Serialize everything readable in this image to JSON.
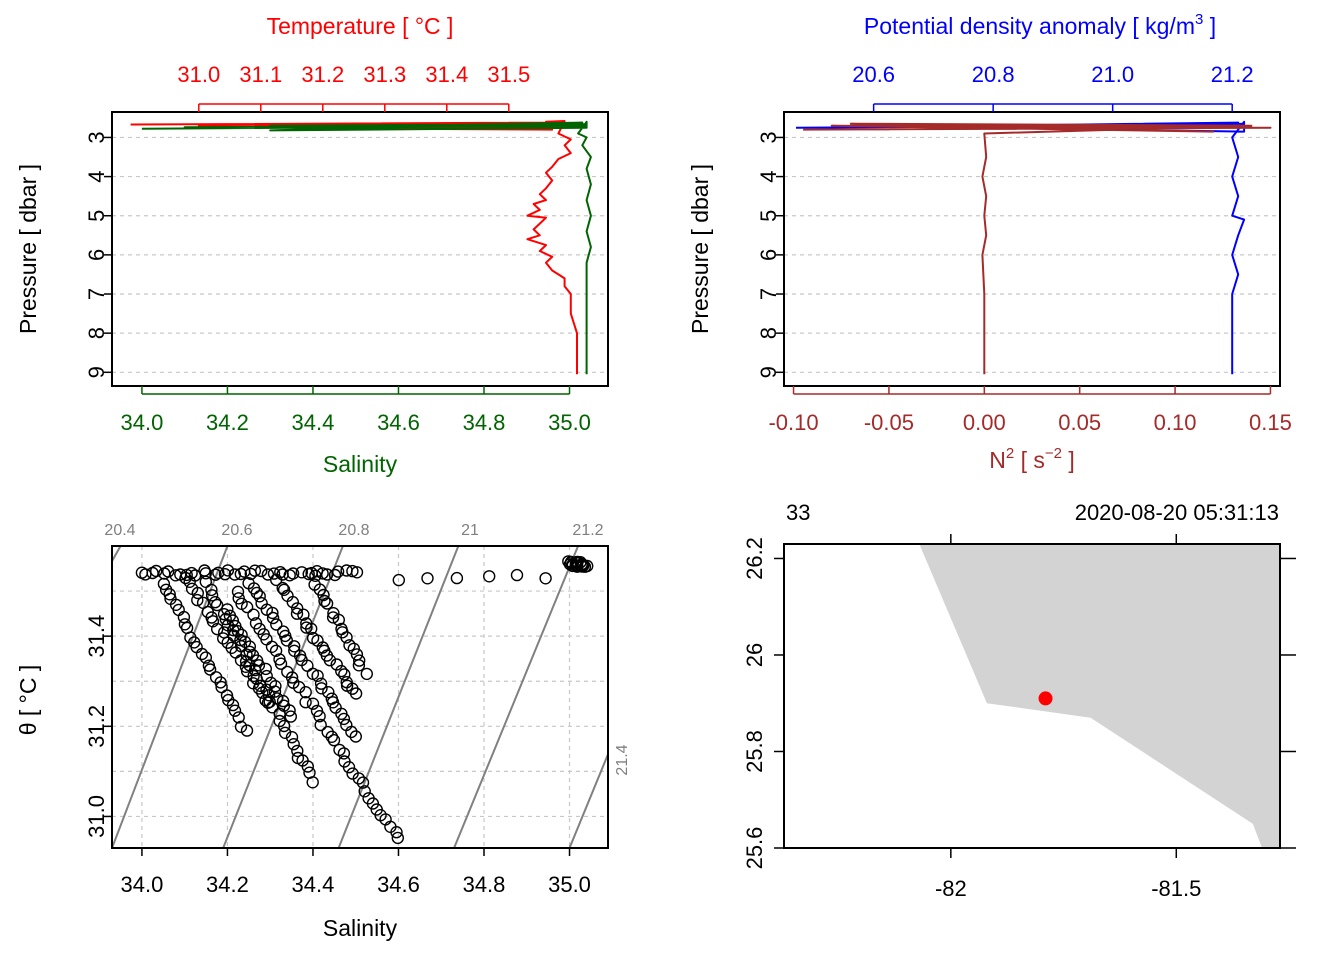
{
  "chart_data": [
    {
      "id": "profile-ts",
      "type": "line",
      "ylabel": "Pressure [ dbar ]",
      "ylim": [
        9.35,
        2.35
      ],
      "yticks": [
        "3",
        "4",
        "5",
        "6",
        "7",
        "8",
        "9"
      ],
      "top_axis": {
        "label": "Temperature [ °C ]",
        "range": [
          30.86,
          31.66
        ],
        "ticks": [
          "31.0",
          "31.1",
          "31.2",
          "31.3",
          "31.4",
          "31.5"
        ],
        "color": "#ff0000"
      },
      "bottom_axis": {
        "label": "Salinity",
        "range": [
          33.93,
          35.09
        ],
        "ticks": [
          "34.0",
          "34.2",
          "34.4",
          "34.6",
          "34.8",
          "35.0"
        ],
        "color": "#006400"
      },
      "grid": true,
      "series": [
        {
          "axis": "top",
          "color": "#ff0000",
          "points": [
            [
              30.89,
              2.67
            ],
            [
              31.57,
              2.62
            ],
            [
              31.0,
              2.7
            ],
            [
              31.58,
              2.65
            ],
            [
              31.1,
              2.74
            ],
            [
              31.57,
              2.7
            ],
            [
              31.2,
              2.72
            ],
            [
              31.58,
              2.75
            ],
            [
              31.3,
              2.78
            ],
            [
              31.57,
              2.8
            ],
            [
              31.56,
              2.6
            ],
            [
              31.59,
              2.58
            ],
            [
              31.58,
              2.9
            ],
            [
              31.6,
              3.05
            ],
            [
              31.59,
              3.2
            ],
            [
              31.6,
              3.4
            ],
            [
              31.58,
              3.55
            ],
            [
              31.57,
              3.75
            ],
            [
              31.56,
              3.9
            ],
            [
              31.57,
              4.1
            ],
            [
              31.56,
              4.3
            ],
            [
              31.55,
              4.45
            ],
            [
              31.56,
              4.6
            ],
            [
              31.54,
              4.7
            ],
            [
              31.55,
              4.85
            ],
            [
              31.53,
              5.0
            ],
            [
              31.56,
              5.05
            ],
            [
              31.55,
              5.2
            ],
            [
              31.54,
              5.35
            ],
            [
              31.55,
              5.5
            ],
            [
              31.53,
              5.6
            ],
            [
              31.56,
              5.75
            ],
            [
              31.55,
              5.9
            ],
            [
              31.57,
              6.05
            ],
            [
              31.56,
              6.2
            ],
            [
              31.57,
              6.4
            ],
            [
              31.58,
              6.5
            ],
            [
              31.59,
              6.6
            ],
            [
              31.59,
              6.8
            ],
            [
              31.6,
              7.0
            ],
            [
              31.6,
              7.5
            ],
            [
              31.61,
              8.0
            ],
            [
              31.61,
              8.5
            ],
            [
              31.61,
              9.05
            ]
          ]
        },
        {
          "axis": "bottom",
          "color": "#006400",
          "points": [
            [
              34.0,
              2.78
            ],
            [
              35.04,
              2.7
            ],
            [
              34.1,
              2.74
            ],
            [
              35.03,
              2.68
            ],
            [
              34.3,
              2.7
            ],
            [
              35.04,
              2.66
            ],
            [
              34.5,
              2.72
            ],
            [
              35.03,
              2.62
            ],
            [
              34.3,
              2.82
            ],
            [
              35.04,
              2.75
            ],
            [
              35.04,
              2.6
            ],
            [
              35.02,
              2.9
            ],
            [
              35.04,
              3.0
            ],
            [
              35.03,
              3.2
            ],
            [
              35.05,
              3.5
            ],
            [
              35.04,
              3.8
            ],
            [
              35.05,
              4.2
            ],
            [
              35.04,
              4.6
            ],
            [
              35.05,
              5.0
            ],
            [
              35.04,
              5.4
            ],
            [
              35.05,
              5.8
            ],
            [
              35.04,
              6.2
            ],
            [
              35.04,
              6.6
            ],
            [
              35.04,
              7.0
            ],
            [
              35.04,
              7.5
            ],
            [
              35.04,
              8.0
            ],
            [
              35.04,
              8.5
            ],
            [
              35.04,
              9.05
            ]
          ]
        }
      ]
    },
    {
      "id": "profile-density",
      "type": "line",
      "ylabel": "Pressure [ dbar ]",
      "ylim": [
        9.35,
        2.35
      ],
      "yticks": [
        "3",
        "4",
        "5",
        "6",
        "7",
        "8",
        "9"
      ],
      "top_axis": {
        "label_main": "Potential density anomaly [ kg/m",
        "label_sup": "3",
        "label_end": " ]",
        "range": [
          20.45,
          21.28
        ],
        "ticks": [
          "20.6",
          "20.8",
          "21.0",
          "21.2"
        ],
        "color": "#0000ff"
      },
      "bottom_axis": {
        "label_main": "N",
        "label_sup": "2",
        "label_mid": " [ s",
        "label_sup2": "−2",
        "label_end": " ]",
        "range": [
          -0.105,
          0.155
        ],
        "ticks": [
          "-0.10",
          "-0.05",
          "0.00",
          "0.05",
          "0.10",
          "0.15"
        ],
        "color": "#a52a2a"
      },
      "grid": true,
      "series": [
        {
          "axis": "top",
          "color": "#0000ff",
          "points": [
            [
              20.47,
              2.75
            ],
            [
              21.2,
              2.68
            ],
            [
              20.6,
              2.72
            ],
            [
              21.22,
              2.65
            ],
            [
              20.8,
              2.7
            ],
            [
              21.21,
              2.62
            ],
            [
              21.0,
              2.8
            ],
            [
              21.22,
              2.85
            ],
            [
              21.22,
              2.6
            ],
            [
              21.2,
              3.0
            ],
            [
              21.21,
              3.5
            ],
            [
              21.2,
              4.0
            ],
            [
              21.21,
              4.5
            ],
            [
              21.2,
              5.0
            ],
            [
              21.22,
              5.1
            ],
            [
              21.21,
              5.5
            ],
            [
              21.2,
              6.0
            ],
            [
              21.21,
              6.5
            ],
            [
              21.2,
              7.0
            ],
            [
              21.2,
              8.0
            ],
            [
              21.2,
              9.05
            ]
          ]
        },
        {
          "axis": "bottom",
          "color": "#a52a2a",
          "points": [
            [
              -0.095,
              2.8
            ],
            [
              0.15,
              2.75
            ],
            [
              -0.08,
              2.7
            ],
            [
              0.12,
              2.85
            ],
            [
              -0.07,
              2.65
            ],
            [
              0.14,
              2.7
            ],
            [
              0.0,
              2.9
            ],
            [
              0.001,
              3.5
            ],
            [
              -0.001,
              4.0
            ],
            [
              0.001,
              4.5
            ],
            [
              0.0,
              5.0
            ],
            [
              0.001,
              5.5
            ],
            [
              -0.001,
              6.0
            ],
            [
              0.0,
              7.0
            ],
            [
              0.0,
              8.0
            ],
            [
              0.0,
              9.05
            ]
          ]
        }
      ]
    },
    {
      "id": "ts-diagram",
      "type": "scatter",
      "xlabel": "Salinity",
      "ylabel": "θ [ °C ]",
      "xlim": [
        33.93,
        35.09
      ],
      "ylim": [
        30.93,
        31.6
      ],
      "xticks": [
        "34.0",
        "34.2",
        "34.4",
        "34.6",
        "34.8",
        "35.0"
      ],
      "yticks": [
        "31.0",
        "31.2",
        "31.4"
      ],
      "grid": true,
      "isopycnal_labels": [
        "20.4",
        "20.6",
        "20.8",
        "21",
        "21.2",
        "21.4"
      ],
      "isopycnals": [
        {
          "name": "20.4",
          "s_at_top": 33.95,
          "s_at_bottom": 33.55
        },
        {
          "name": "20.6",
          "s_at_top": 34.2,
          "s_at_bottom": 33.93
        },
        {
          "name": "20.8",
          "s_at_top": 34.47,
          "s_at_bottom": 34.19
        },
        {
          "name": "21",
          "s_at_top": 34.74,
          "s_at_bottom": 34.46
        },
        {
          "name": "21.2",
          "s_at_top": 35.02,
          "s_at_bottom": 34.73
        },
        {
          "name": "",
          "s_at_top": 35.29,
          "s_at_bottom": 35.0
        },
        {
          "name": "21.4",
          "s_at_top": 35.56,
          "s_at_bottom": 35.26
        }
      ],
      "point_groups": [
        {
          "s_start": 34.0,
          "s_end": 34.5,
          "t": 31.54,
          "count": 40
        },
        {
          "s_start": 34.6,
          "s_end": 34.95,
          "t": 31.53,
          "count": 6
        },
        {
          "s_start": 35.0,
          "s_end": 35.04,
          "t": 31.56,
          "count": 20
        },
        {
          "s_start": 34.05,
          "s_end": 34.24,
          "t_start": 31.52,
          "t_end": 31.19,
          "count": 26
        },
        {
          "s_start": 34.1,
          "s_end": 34.3,
          "t_start": 31.53,
          "t_end": 31.25,
          "count": 24
        },
        {
          "s_start": 34.15,
          "s_end": 34.4,
          "t_start": 31.52,
          "t_end": 31.08,
          "count": 34
        },
        {
          "s_start": 34.22,
          "s_end": 34.6,
          "t_start": 31.5,
          "t_end": 30.95,
          "count": 42
        },
        {
          "s_start": 34.25,
          "s_end": 34.5,
          "t_start": 31.52,
          "t_end": 31.18,
          "count": 30
        },
        {
          "s_start": 34.32,
          "s_end": 34.5,
          "t_start": 31.52,
          "t_end": 31.27,
          "count": 24
        },
        {
          "s_start": 34.4,
          "s_end": 34.52,
          "t_start": 31.53,
          "t_end": 31.32,
          "count": 18
        },
        {
          "s_start": 34.2,
          "s_end": 34.35,
          "t_start": 31.46,
          "t_end": 31.22,
          "count": 22
        }
      ]
    },
    {
      "id": "station-map",
      "type": "scatter",
      "top_left_label": "33",
      "top_right_label": "2020-08-20 05:31:13",
      "xlim": [
        -82.37,
        -81.27
      ],
      "ylim": [
        25.6,
        26.23
      ],
      "xticks": [
        {
          "value": -82,
          "label": "-82"
        },
        {
          "value": -81.5,
          "label": "-81.5"
        }
      ],
      "yticks": [
        {
          "value": 25.6,
          "label": "25.6"
        },
        {
          "value": 25.8,
          "label": "25.8"
        },
        {
          "value": 26.0,
          "label": "26"
        },
        {
          "value": 26.2,
          "label": "26.2"
        }
      ],
      "land_color": "#d3d3d3",
      "land_polygon": [
        [
          -82.07,
          26.23
        ],
        [
          -81.92,
          25.9
        ],
        [
          -81.69,
          25.87
        ],
        [
          -81.33,
          25.65
        ],
        [
          -81.31,
          25.6
        ],
        [
          -81.27,
          25.6
        ],
        [
          -81.27,
          26.23
        ]
      ],
      "station": {
        "lon": -81.79,
        "lat": 25.91,
        "color": "#ff0000"
      }
    }
  ]
}
